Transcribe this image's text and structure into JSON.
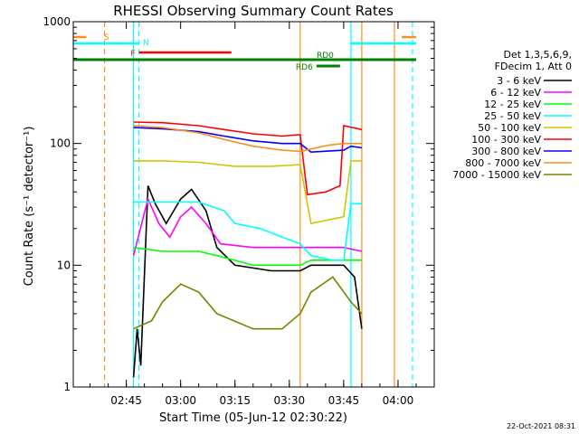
{
  "chart_data": {
    "type": "line",
    "title": "RHESSI Observing Summary Count Rates",
    "xlabel": "Start Time (05-Jun-12 02:30:22)",
    "ylabel": "Count Rate (s⁻¹ detector⁻¹)",
    "yscale": "log",
    "ylim": [
      1,
      1000
    ],
    "xlim": [
      "02:30:22",
      "04:10:00"
    ],
    "x_ticks": [
      "02:45",
      "03:00",
      "03:15",
      "03:30",
      "03:45",
      "04:00"
    ],
    "y_ticks": [
      "1",
      "10",
      "100",
      "1000"
    ],
    "legend_header": [
      "Det 1,3,5,6,9,",
      "FDecim 1, Att 0"
    ],
    "legend_placement": "right",
    "grid": false,
    "timestamp": "22-Oct-2021 08:31",
    "series": [
      {
        "name": "3 - 6 keV",
        "color": "#000000",
        "points": [
          [
            "02:47:00",
            1.2
          ],
          [
            "02:48:00",
            3
          ],
          [
            "02:49:00",
            1.5
          ],
          [
            "02:51:00",
            45
          ],
          [
            "02:53:00",
            32
          ],
          [
            "02:56:00",
            22
          ],
          [
            "03:00:00",
            35
          ],
          [
            "03:03:00",
            42
          ],
          [
            "03:07:00",
            28
          ],
          [
            "03:10:00",
            14
          ],
          [
            "03:15:00",
            10
          ],
          [
            "03:25:00",
            9
          ],
          [
            "03:33:00",
            9
          ],
          [
            "03:36:00",
            10
          ],
          [
            "03:45:00",
            10
          ],
          [
            "03:48:00",
            8
          ],
          [
            "03:50:00",
            3
          ]
        ]
      },
      {
        "name": "6 - 12 keV",
        "color": "#ff00ff",
        "points": [
          [
            "02:47:00",
            12
          ],
          [
            "02:51:00",
            35
          ],
          [
            "02:54:00",
            22
          ],
          [
            "02:57:00",
            17
          ],
          [
            "03:00:00",
            25
          ],
          [
            "03:03:00",
            30
          ],
          [
            "03:07:00",
            22
          ],
          [
            "03:11:00",
            15
          ],
          [
            "03:20:00",
            14
          ],
          [
            "03:33:00",
            14
          ],
          [
            "03:36:00",
            14
          ],
          [
            "03:45:00",
            14
          ],
          [
            "03:50:00",
            13
          ]
        ]
      },
      {
        "name": "12 - 25 keV",
        "color": "#00ff00",
        "points": [
          [
            "02:47:00",
            14
          ],
          [
            "02:55:00",
            13
          ],
          [
            "03:05:00",
            13
          ],
          [
            "03:10:00",
            12
          ],
          [
            "03:20:00",
            10
          ],
          [
            "03:33:00",
            10
          ],
          [
            "03:36:00",
            11
          ],
          [
            "03:45:00",
            11
          ],
          [
            "03:50:00",
            11
          ]
        ]
      },
      {
        "name": "25 - 50 keV",
        "color": "#00ffff",
        "points": [
          [
            "02:47:00",
            33
          ],
          [
            "02:55:00",
            33
          ],
          [
            "03:05:00",
            33
          ],
          [
            "03:12:00",
            28
          ],
          [
            "03:15:00",
            22
          ],
          [
            "03:22:00",
            20
          ],
          [
            "03:28:00",
            17
          ],
          [
            "03:33:00",
            15
          ],
          [
            "03:36:00",
            12
          ],
          [
            "03:42:00",
            11
          ],
          [
            "03:45:00",
            11
          ],
          [
            "03:47:00",
            32
          ],
          [
            "03:50:00",
            32
          ]
        ]
      },
      {
        "name": "50 - 100 keV",
        "color": "#d4c400",
        "points": [
          [
            "02:47:00",
            72
          ],
          [
            "02:55:00",
            72
          ],
          [
            "03:05:00",
            70
          ],
          [
            "03:15:00",
            65
          ],
          [
            "03:25:00",
            65
          ],
          [
            "03:33:00",
            67
          ],
          [
            "03:36:00",
            22
          ],
          [
            "03:45:00",
            25
          ],
          [
            "03:47:00",
            72
          ],
          [
            "03:50:00",
            72
          ]
        ]
      },
      {
        "name": "100 - 300 keV",
        "color": "#ff0000",
        "points": [
          [
            "02:47:00",
            150
          ],
          [
            "02:55:00",
            148
          ],
          [
            "03:05:00",
            140
          ],
          [
            "03:12:00",
            130
          ],
          [
            "03:20:00",
            120
          ],
          [
            "03:28:00",
            115
          ],
          [
            "03:33:00",
            118
          ],
          [
            "03:35:00",
            38
          ],
          [
            "03:40:00",
            40
          ],
          [
            "03:44:00",
            45
          ],
          [
            "03:45:00",
            140
          ],
          [
            "03:50:00",
            130
          ]
        ]
      },
      {
        "name": "300 - 800 keV",
        "color": "#0000ff",
        "points": [
          [
            "02:47:00",
            135
          ],
          [
            "02:55:00",
            132
          ],
          [
            "03:05:00",
            125
          ],
          [
            "03:12:00",
            115
          ],
          [
            "03:20:00",
            105
          ],
          [
            "03:28:00",
            100
          ],
          [
            "03:33:00",
            100
          ],
          [
            "03:36:00",
            85
          ],
          [
            "03:45:00",
            88
          ],
          [
            "03:47:00",
            95
          ],
          [
            "03:50:00",
            92
          ]
        ]
      },
      {
        "name": "800 - 7000 keV",
        "color": "#ff8c1a",
        "points": [
          [
            "02:47:00",
            140
          ],
          [
            "02:55:00",
            135
          ],
          [
            "03:05:00",
            122
          ],
          [
            "03:12:00",
            108
          ],
          [
            "03:20:00",
            95
          ],
          [
            "03:28:00",
            88
          ],
          [
            "03:33:00",
            86
          ],
          [
            "03:36:00",
            90
          ],
          [
            "03:41:00",
            97
          ],
          [
            "03:45:00",
            100
          ],
          [
            "03:50:00",
            100
          ]
        ]
      },
      {
        "name": "7000 - 15000 keV",
        "color": "#808000",
        "points": [
          [
            "02:47:00",
            3
          ],
          [
            "02:52:00",
            3.5
          ],
          [
            "02:55:00",
            5
          ],
          [
            "03:00:00",
            7
          ],
          [
            "03:05:00",
            6
          ],
          [
            "03:10:00",
            4
          ],
          [
            "03:20:00",
            3
          ],
          [
            "03:28:00",
            3
          ],
          [
            "03:33:00",
            4
          ],
          [
            "03:36:00",
            6
          ],
          [
            "03:42:00",
            8
          ],
          [
            "03:47:00",
            5
          ],
          [
            "03:50:00",
            4
          ]
        ]
      }
    ],
    "flags": [
      {
        "label": "S",
        "color": "#ff8c1a",
        "segments": [
          [
            "02:30:22",
            "02:34:00"
          ],
          [
            "04:01:00",
            "04:05:00"
          ]
        ]
      },
      {
        "label": "N",
        "color": "#00ffff",
        "segments": [
          [
            "02:30:22",
            "02:48:30"
          ],
          [
            "03:47:00",
            "04:05:00"
          ]
        ]
      },
      {
        "label": "F",
        "color": "#ff0000",
        "segments": [
          [
            "02:48:30",
            "03:14:00"
          ]
        ]
      },
      {
        "label": "RD0",
        "color": "#008000",
        "segments": [
          [
            "02:30:22",
            "04:05:00"
          ]
        ]
      },
      {
        "label": "RD6",
        "color": "#008000",
        "segments": [
          [
            "03:37:30",
            "03:44:00"
          ]
        ]
      }
    ],
    "vertical_markers": [
      {
        "time": "02:39:00",
        "color": "#ff8c1a",
        "style": "dashed"
      },
      {
        "time": "02:47:00",
        "color": "#00ffff",
        "style": "solid"
      },
      {
        "time": "02:48:30",
        "color": "#00ffff",
        "style": "dashed"
      },
      {
        "time": "03:33:00",
        "color": "#ff8c1a",
        "style": "solid"
      },
      {
        "time": "03:47:00",
        "color": "#00ffff",
        "style": "solid"
      },
      {
        "time": "03:50:00",
        "color": "#ff8c1a",
        "style": "solid"
      },
      {
        "time": "03:59:00",
        "color": "#ff8c1a",
        "style": "solid"
      },
      {
        "time": "04:04:00",
        "color": "#00ffff",
        "style": "dashed"
      }
    ]
  }
}
